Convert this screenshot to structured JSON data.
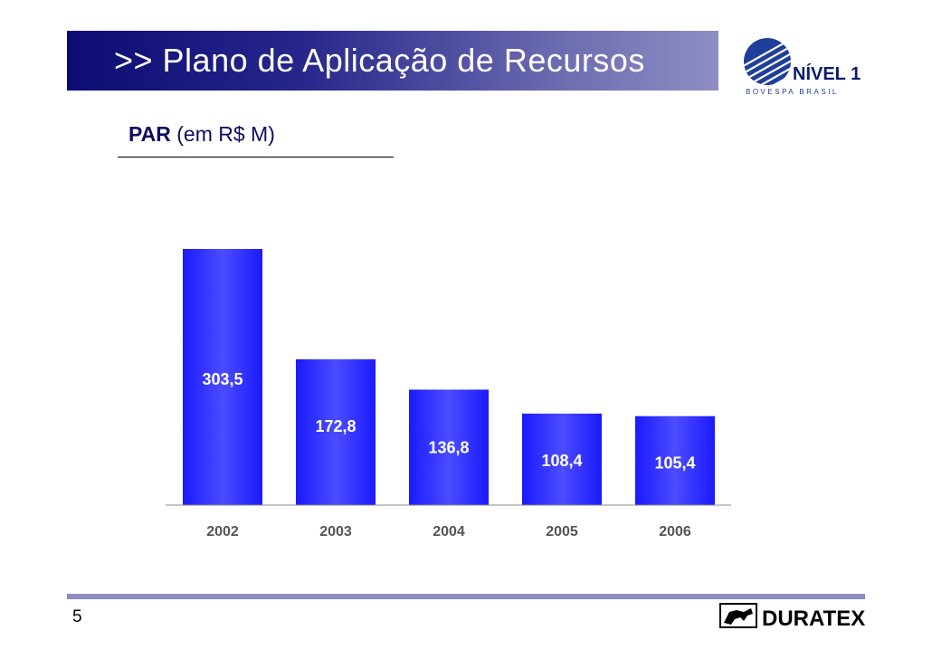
{
  "header": {
    "title": ">> Plano de Aplicação de Recursos"
  },
  "logos": {
    "nivel_top": "NÍVEL 1",
    "nivel_bottom": "BOVESPA   BRASIL",
    "duratex": "DURATEX"
  },
  "colors": {
    "header_dark": "#0c0c74",
    "header_light": "#8e8ec4",
    "bar": "#1a1aff",
    "bar_highlight": "#5b5bff",
    "footer_rule": "#8c8cc0"
  },
  "chart_data": {
    "type": "bar",
    "title": "PAR",
    "unit": "(em R$ M)",
    "categories": [
      "2002",
      "2003",
      "2004",
      "2005",
      "2006"
    ],
    "values": [
      303.5,
      172.8,
      136.8,
      108.4,
      105.4
    ],
    "value_labels": [
      "303,5",
      "172,8",
      "136,8",
      "108,4",
      "105,4"
    ],
    "xlabel": "",
    "ylabel": "",
    "ylim": [
      0,
      303.5
    ],
    "grid": false,
    "legend": "none"
  },
  "footer": {
    "page_number": "5"
  }
}
